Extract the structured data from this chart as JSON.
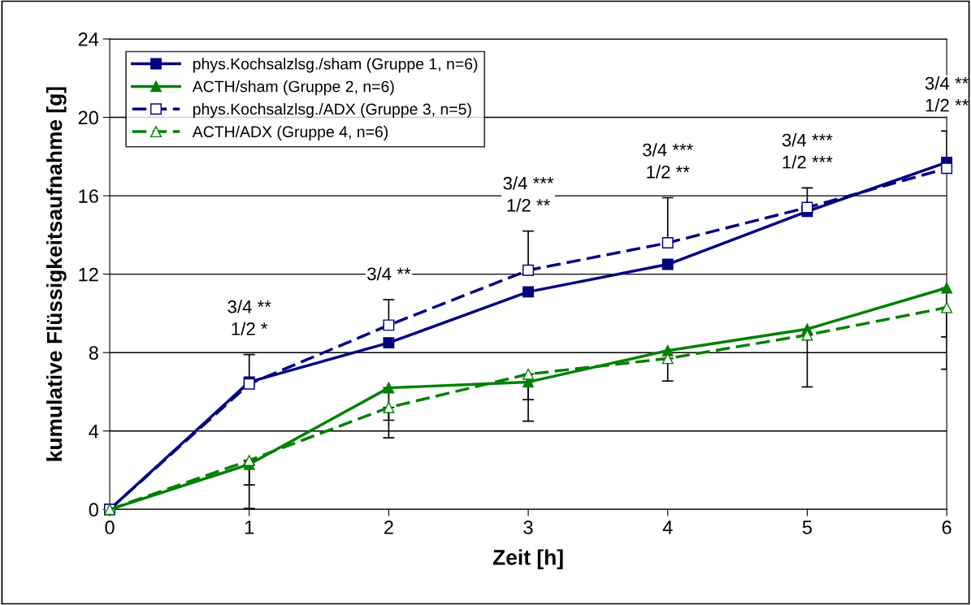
{
  "chart_data": {
    "type": "line",
    "xlabel": "Zeit [h]",
    "ylabel": "kumulative Flüssigkeitsaufnahme [g]",
    "x": [
      0,
      1,
      2,
      3,
      4,
      5,
      6
    ],
    "xlim": [
      0,
      6
    ],
    "xticks": [
      0,
      1,
      2,
      3,
      4,
      5,
      6
    ],
    "ylim": [
      0,
      24
    ],
    "yticks": [
      0,
      4,
      8,
      12,
      16,
      20,
      24
    ],
    "grid": "y",
    "legend": "top left",
    "series": [
      {
        "name": "phys.Kochsalzlsg./sham (Gruppe 1, n=6)",
        "color": "#000080",
        "marker": "square",
        "line_style": "solid",
        "values": [
          0,
          6.5,
          8.5,
          11.1,
          12.5,
          15.2,
          17.7
        ]
      },
      {
        "name": "ACTH/sham (Gruppe 2, n=6)",
        "color": "#008000",
        "marker": "triangle",
        "line_style": "solid",
        "values": [
          0,
          2.3,
          6.2,
          6.5,
          8.1,
          9.2,
          11.3
        ],
        "errors": [
          null,
          [
            1.25,
            2.3
          ],
          [
            4.55,
            6.2
          ],
          [
            5.6,
            6.5
          ],
          null,
          null,
          [
            8.8,
            11.3
          ]
        ]
      },
      {
        "name": "phys.Kochsalzlsg./ADX (Gruppe 3, n=5)",
        "color": "#000080",
        "marker": "square",
        "line_style": "dashed",
        "values": [
          0,
          6.4,
          9.4,
          12.2,
          13.6,
          15.4,
          17.4
        ],
        "errors": [
          null,
          [
            6.4,
            7.9
          ],
          [
            9.4,
            10.7
          ],
          [
            12.2,
            14.2
          ],
          [
            13.6,
            15.9
          ],
          [
            15.4,
            16.4
          ],
          [
            17.4,
            19.3
          ]
        ]
      },
      {
        "name": "ACTH/ADX (Gruppe 4, n=6)",
        "color": "#008000",
        "marker": "triangle",
        "line_style": "dashed",
        "values": [
          0,
          2.5,
          5.2,
          6.9,
          7.7,
          8.9,
          10.3
        ],
        "errors": [
          null,
          [
            0.05,
            2.5
          ],
          [
            3.65,
            5.2
          ],
          [
            4.5,
            6.9
          ],
          [
            6.55,
            7.7
          ],
          [
            6.25,
            8.9
          ],
          [
            7.15,
            10.3
          ]
        ]
      }
    ],
    "annotations": [
      "3/4 **\n1/2 *",
      "3/4 **",
      "3/4 ***\n1/2 **",
      "3/4 ***\n1/2 **",
      "3/4 ***\n1/2 ***",
      "3/4 **\n1/2 **"
    ]
  }
}
